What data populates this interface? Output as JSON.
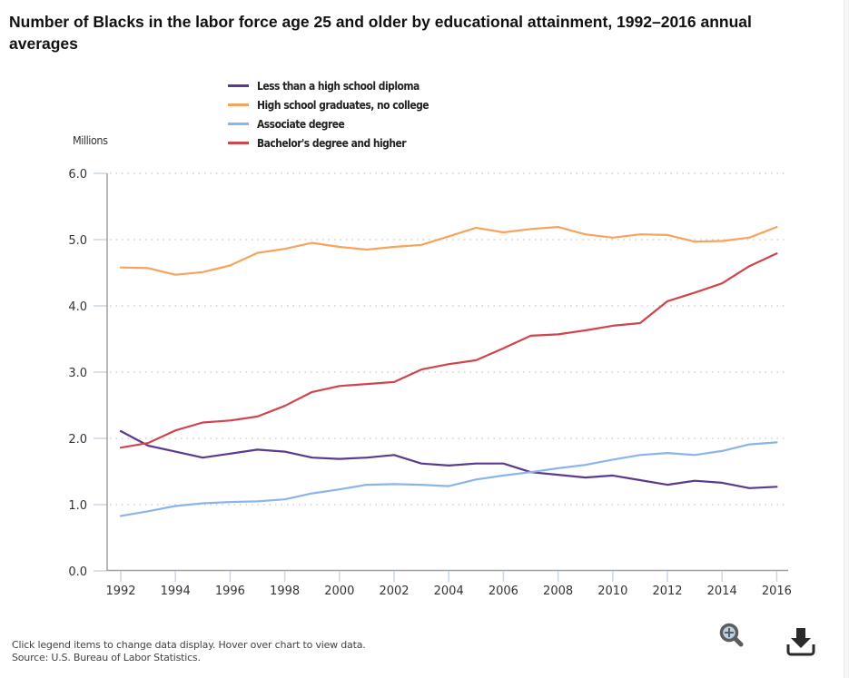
{
  "title": "Number of Blacks in the labor force age 25 and older by educational attainment, 1992–2016 annual averages",
  "footer": {
    "hint": "Click legend items to change data display. Hover over chart to view data.",
    "source": "Source: U.S. Bureau of Labor Statistics."
  },
  "toolbar": {
    "zoom_icon": "zoom-in-icon",
    "download_icon": "download-icon"
  },
  "chart_data": {
    "type": "line",
    "title": "Number of Blacks in the labor force age 25 and older by educational attainment, 1992–2016 annual averages",
    "xlabel": "",
    "ylabel": "Millions",
    "x": [
      1992,
      1993,
      1994,
      1995,
      1996,
      1997,
      1998,
      1999,
      2000,
      2001,
      2002,
      2003,
      2004,
      2005,
      2006,
      2007,
      2008,
      2009,
      2010,
      2011,
      2012,
      2013,
      2014,
      2015,
      2016
    ],
    "xticks": [
      "1992",
      "1994",
      "1996",
      "1998",
      "2000",
      "2002",
      "2004",
      "2006",
      "2008",
      "2010",
      "2012",
      "2014",
      "2016"
    ],
    "yticks": [
      "0.0",
      "1.0",
      "2.0",
      "3.0",
      "4.0",
      "5.0",
      "6.0"
    ],
    "ylim": [
      0,
      6
    ],
    "grid": true,
    "legend_position": "top",
    "series": [
      {
        "name": "Less than a high school diploma",
        "color": "#5b3a8e",
        "values": [
          2.11,
          1.89,
          1.8,
          1.71,
          1.77,
          1.83,
          1.8,
          1.71,
          1.69,
          1.71,
          1.75,
          1.62,
          1.59,
          1.62,
          1.62,
          1.49,
          1.45,
          1.41,
          1.44,
          1.37,
          1.3,
          1.36,
          1.33,
          1.25,
          1.27
        ]
      },
      {
        "name": "High school graduates, no college",
        "color": "#f7a35c",
        "values": [
          4.58,
          4.57,
          4.47,
          4.51,
          4.61,
          4.8,
          4.86,
          4.95,
          4.89,
          4.85,
          4.89,
          4.92,
          5.05,
          5.18,
          5.11,
          5.16,
          5.19,
          5.08,
          5.03,
          5.08,
          5.07,
          4.97,
          4.98,
          5.03,
          5.19
        ]
      },
      {
        "name": "Associate degree",
        "color": "#8bb4ea",
        "values": [
          0.83,
          0.9,
          0.98,
          1.02,
          1.04,
          1.05,
          1.08,
          1.17,
          1.23,
          1.3,
          1.31,
          1.3,
          1.28,
          1.38,
          1.44,
          1.49,
          1.55,
          1.6,
          1.68,
          1.75,
          1.78,
          1.75,
          1.81,
          1.91,
          1.94
        ]
      },
      {
        "name": "Bachelor's degree and higher",
        "color": "#d0454c",
        "values": [
          1.86,
          1.93,
          2.12,
          2.24,
          2.27,
          2.33,
          2.49,
          2.7,
          2.79,
          2.82,
          2.85,
          3.04,
          3.12,
          3.18,
          3.36,
          3.55,
          3.57,
          3.63,
          3.7,
          3.74,
          4.07,
          4.2,
          4.34,
          4.6,
          4.79
        ]
      }
    ]
  }
}
